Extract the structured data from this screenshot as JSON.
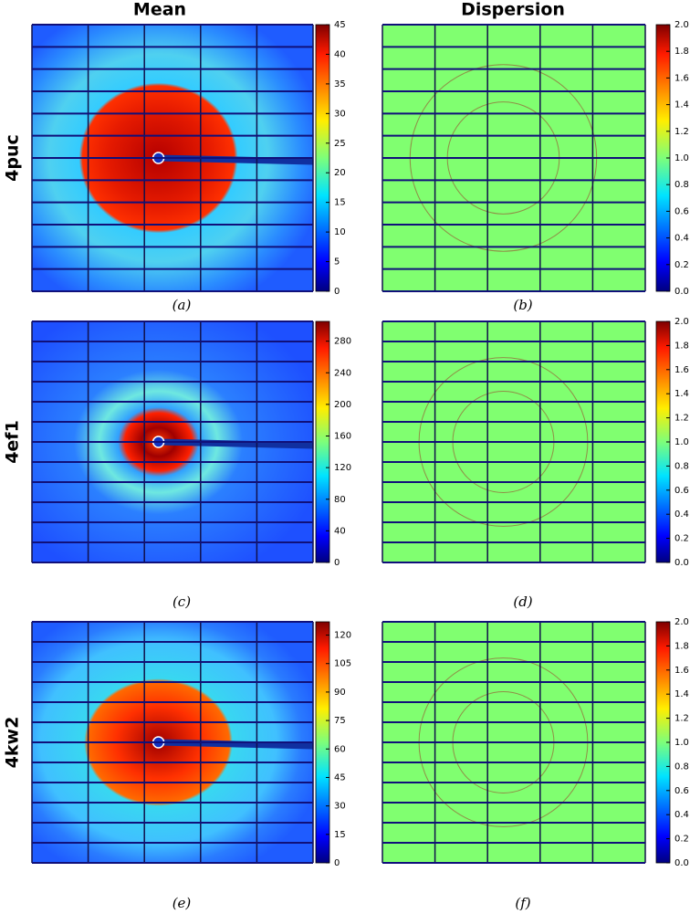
{
  "figure": {
    "columns": [
      "Mean",
      "Dispersion"
    ],
    "rows": [
      "4puc",
      "4ef1",
      "4kw2"
    ]
  },
  "chart_data": [
    {
      "type": "heatmap",
      "caption": "(a)",
      "colormap": "jet",
      "clim": [
        0,
        45
      ],
      "cticks": [
        0,
        5,
        10,
        15,
        20,
        25,
        30,
        35,
        40,
        45
      ]
    },
    {
      "type": "heatmap",
      "caption": "(b)",
      "colormap": "jet",
      "clim": [
        0,
        2
      ],
      "cticks": [
        {
          "value": 0,
          "label": "0.0"
        },
        {
          "value": 0.2,
          "label": "0.2"
        },
        {
          "value": 0.4,
          "label": "0.4"
        },
        {
          "value": 0.6,
          "label": "0.6"
        },
        {
          "value": 0.8,
          "label": "0.8"
        },
        {
          "value": 1,
          "label": "1.0"
        },
        {
          "value": 1.2,
          "label": "1.2"
        },
        {
          "value": 1.4,
          "label": "1.4"
        },
        {
          "value": 1.6,
          "label": "1.6"
        },
        {
          "value": 1.8,
          "label": "1.8"
        },
        {
          "value": 2,
          "label": "2.0"
        }
      ]
    },
    {
      "type": "heatmap",
      "caption": "(c)",
      "colormap": "jet",
      "clim": [
        0,
        305
      ],
      "cticks": [
        0,
        40,
        80,
        120,
        160,
        200,
        240,
        280
      ]
    },
    {
      "type": "heatmap",
      "caption": "(d)",
      "colormap": "jet",
      "clim": [
        0,
        2
      ],
      "cticks": [
        {
          "value": 0,
          "label": "0.0"
        },
        {
          "value": 0.2,
          "label": "0.2"
        },
        {
          "value": 0.4,
          "label": "0.4"
        },
        {
          "value": 0.6,
          "label": "0.6"
        },
        {
          "value": 0.8,
          "label": "0.8"
        },
        {
          "value": 1,
          "label": "1.0"
        },
        {
          "value": 1.2,
          "label": "1.2"
        },
        {
          "value": 1.4,
          "label": "1.4"
        },
        {
          "value": 1.6,
          "label": "1.6"
        },
        {
          "value": 1.8,
          "label": "1.8"
        },
        {
          "value": 2,
          "label": "2.0"
        }
      ]
    },
    {
      "type": "heatmap",
      "caption": "(e)",
      "colormap": "jet",
      "clim": [
        0,
        127
      ],
      "cticks": [
        0,
        15,
        30,
        45,
        60,
        75,
        90,
        105,
        120
      ]
    },
    {
      "type": "heatmap",
      "caption": "(f)",
      "colormap": "jet",
      "clim": [
        0,
        2
      ],
      "cticks": [
        {
          "value": 0,
          "label": "0.0"
        },
        {
          "value": 0.2,
          "label": "0.2"
        },
        {
          "value": 0.4,
          "label": "0.4"
        },
        {
          "value": 0.6,
          "label": "0.6"
        },
        {
          "value": 0.8,
          "label": "0.8"
        },
        {
          "value": 1,
          "label": "1.0"
        },
        {
          "value": 1.2,
          "label": "1.2"
        },
        {
          "value": 1.4,
          "label": "1.4"
        },
        {
          "value": 1.6,
          "label": "1.6"
        },
        {
          "value": 1.8,
          "label": "1.8"
        },
        {
          "value": 2,
          "label": "2.0"
        }
      ]
    }
  ]
}
